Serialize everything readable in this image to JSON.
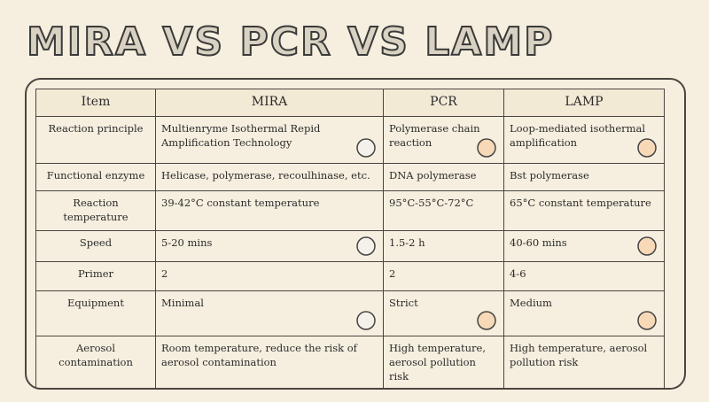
{
  "title": "MIRA VS PCR VS LAMP",
  "table": {
    "header": [
      "Item",
      "MIRA",
      "PCR",
      "LAMP"
    ],
    "rows": [
      [
        "Reaction principle",
        "Multienryme Isothermal Repid Amplification Technology",
        "Polymerase chain reaction",
        "Loop-mediated isothermal amplification"
      ],
      [
        "Functional enzyme",
        "Helicase, polymerase, recoulhinase, etc.",
        "DNA polymerase",
        "Bst polymerase"
      ],
      [
        "Reaction temperature",
        "39-42°C constant temperature",
        "95°C-55°C-72°C",
        "65°C constant temperature"
      ],
      [
        "Speed",
        "5-20 mins",
        "1.5-2 h",
        "40-60 mins"
      ],
      [
        "Primer",
        "2",
        "2",
        "4-6"
      ],
      [
        "Equipment",
        "Minimal",
        "Strict",
        "Medium"
      ],
      [
        "Aerosol contamination",
        "Room temperature, reduce the risk of aerosol contamination",
        "High temperature, aerosol pollution risk",
        "High temperature, aerosol pollution risk"
      ]
    ]
  }
}
